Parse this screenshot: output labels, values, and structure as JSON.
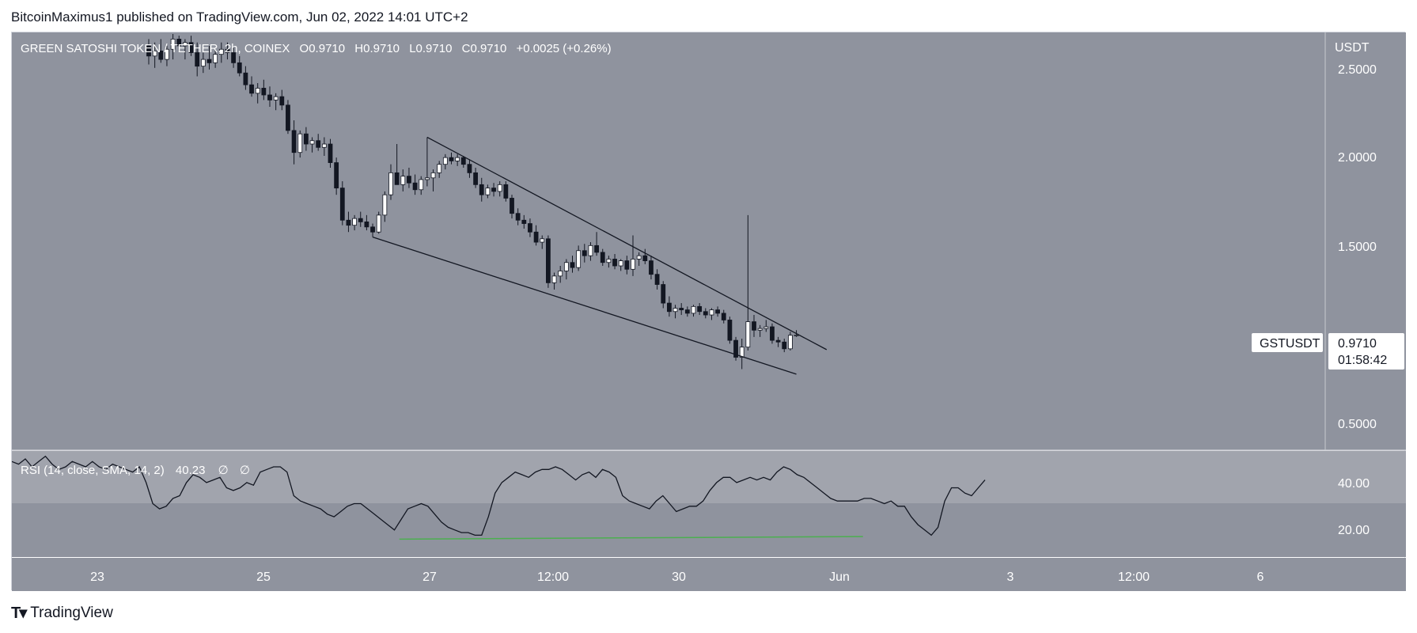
{
  "header": {
    "attribution": "BitcoinMaximus1 published on TradingView.com, Jun 02, 2022 14:01 UTC+2"
  },
  "legend": {
    "symbol": "GREEN SATOSHI TOKEN / TETHER, 2h, COINEX",
    "o_label": "O",
    "o_value": "0.9710",
    "h_label": "H",
    "h_value": "0.9710",
    "l_label": "L",
    "l_value": "0.9710",
    "c_label": "C",
    "c_value": "0.9710",
    "change": "+0.0025 (+0.26%)"
  },
  "price_axis": {
    "currency": "USDT",
    "ticks": [
      "2.5000",
      "2.0000",
      "1.5000",
      "0.5000"
    ],
    "symbol_badge": "GSTUSDT",
    "last_price": "0.9710",
    "countdown": "01:58:42"
  },
  "rsi": {
    "label": "RSI (14, close, SMA, 14, 2)",
    "value": "40.23",
    "extra1": "∅",
    "extra2": "∅",
    "ticks": [
      "40.00",
      "20.00"
    ]
  },
  "time_axis": {
    "ticks": [
      "23",
      "25",
      "27",
      "12:00",
      "30",
      "Jun",
      "3",
      "12:00",
      "6"
    ]
  },
  "footer": {
    "brand": "TradingView"
  },
  "colors": {
    "pane_bg": "#8f939e",
    "rsi_band": "#a1a4ad",
    "candle_up": "#ffffff",
    "candle_down": "#131722",
    "rsi_divergence": "#4caf50"
  },
  "chart_data": [
    {
      "type": "candlestick",
      "title": "GREEN SATOSHI TOKEN / TETHER, 2h, COINEX",
      "y_unit": "USDT",
      "ylim": [
        0.3,
        2.75
      ],
      "x_tick_labels": [
        "23",
        "25",
        "27",
        "12:00",
        "30",
        "Jun",
        "3",
        "12:00",
        "6"
      ],
      "candles": [
        {
          "o": 2.68,
          "h": 2.72,
          "l": 2.57,
          "c": 2.62
        },
        {
          "o": 2.62,
          "h": 2.7,
          "l": 2.55,
          "c": 2.65
        },
        {
          "o": 2.65,
          "h": 2.72,
          "l": 2.58,
          "c": 2.6
        },
        {
          "o": 2.6,
          "h": 2.68,
          "l": 2.56,
          "c": 2.66
        },
        {
          "o": 2.66,
          "h": 2.75,
          "l": 2.6,
          "c": 2.72
        },
        {
          "o": 2.72,
          "h": 2.74,
          "l": 2.65,
          "c": 2.68
        },
        {
          "o": 2.68,
          "h": 2.72,
          "l": 2.6,
          "c": 2.7
        },
        {
          "o": 2.7,
          "h": 2.74,
          "l": 2.62,
          "c": 2.64
        },
        {
          "o": 2.64,
          "h": 2.7,
          "l": 2.5,
          "c": 2.56
        },
        {
          "o": 2.56,
          "h": 2.64,
          "l": 2.52,
          "c": 2.6
        },
        {
          "o": 2.6,
          "h": 2.68,
          "l": 2.54,
          "c": 2.58
        },
        {
          "o": 2.58,
          "h": 2.66,
          "l": 2.55,
          "c": 2.63
        },
        {
          "o": 2.63,
          "h": 2.7,
          "l": 2.58,
          "c": 2.66
        },
        {
          "o": 2.66,
          "h": 2.7,
          "l": 2.6,
          "c": 2.64
        },
        {
          "o": 2.64,
          "h": 2.67,
          "l": 2.55,
          "c": 2.58
        },
        {
          "o": 2.58,
          "h": 2.62,
          "l": 2.5,
          "c": 2.52
        },
        {
          "o": 2.52,
          "h": 2.56,
          "l": 2.42,
          "c": 2.45
        },
        {
          "o": 2.45,
          "h": 2.5,
          "l": 2.38,
          "c": 2.4
        },
        {
          "o": 2.4,
          "h": 2.46,
          "l": 2.34,
          "c": 2.43
        },
        {
          "o": 2.43,
          "h": 2.48,
          "l": 2.36,
          "c": 2.39
        },
        {
          "o": 2.39,
          "h": 2.44,
          "l": 2.32,
          "c": 2.36
        },
        {
          "o": 2.36,
          "h": 2.4,
          "l": 2.3,
          "c": 2.38
        },
        {
          "o": 2.38,
          "h": 2.42,
          "l": 2.3,
          "c": 2.33
        },
        {
          "o": 2.33,
          "h": 2.36,
          "l": 2.16,
          "c": 2.18
        },
        {
          "o": 2.18,
          "h": 2.24,
          "l": 1.98,
          "c": 2.05
        },
        {
          "o": 2.05,
          "h": 2.18,
          "l": 2.02,
          "c": 2.16
        },
        {
          "o": 2.16,
          "h": 2.2,
          "l": 2.06,
          "c": 2.1
        },
        {
          "o": 2.1,
          "h": 2.14,
          "l": 2.05,
          "c": 2.12
        },
        {
          "o": 2.12,
          "h": 2.16,
          "l": 2.06,
          "c": 2.08
        },
        {
          "o": 2.08,
          "h": 2.14,
          "l": 2.03,
          "c": 2.1
        },
        {
          "o": 2.1,
          "h": 2.13,
          "l": 1.96,
          "c": 1.99
        },
        {
          "o": 1.99,
          "h": 2.02,
          "l": 1.8,
          "c": 1.84
        },
        {
          "o": 1.84,
          "h": 1.88,
          "l": 1.62,
          "c": 1.65
        },
        {
          "o": 1.65,
          "h": 1.7,
          "l": 1.58,
          "c": 1.62
        },
        {
          "o": 1.62,
          "h": 1.68,
          "l": 1.59,
          "c": 1.66
        },
        {
          "o": 1.66,
          "h": 1.7,
          "l": 1.61,
          "c": 1.64
        },
        {
          "o": 1.64,
          "h": 1.68,
          "l": 1.59,
          "c": 1.61
        },
        {
          "o": 1.61,
          "h": 1.63,
          "l": 1.55,
          "c": 1.58
        },
        {
          "o": 1.58,
          "h": 1.7,
          "l": 1.57,
          "c": 1.68
        },
        {
          "o": 1.68,
          "h": 1.82,
          "l": 1.64,
          "c": 1.8
        },
        {
          "o": 1.8,
          "h": 1.98,
          "l": 1.77,
          "c": 1.93
        },
        {
          "o": 1.93,
          "h": 2.1,
          "l": 1.88,
          "c": 1.86
        },
        {
          "o": 1.86,
          "h": 1.95,
          "l": 1.82,
          "c": 1.91
        },
        {
          "o": 1.91,
          "h": 1.96,
          "l": 1.84,
          "c": 1.87
        },
        {
          "o": 1.87,
          "h": 1.92,
          "l": 1.8,
          "c": 1.83
        },
        {
          "o": 1.83,
          "h": 1.91,
          "l": 1.8,
          "c": 1.89
        },
        {
          "o": 1.89,
          "h": 2.14,
          "l": 1.85,
          "c": 1.9
        },
        {
          "o": 1.9,
          "h": 1.95,
          "l": 1.82,
          "c": 1.93
        },
        {
          "o": 1.93,
          "h": 2.0,
          "l": 1.9,
          "c": 1.98
        },
        {
          "o": 1.98,
          "h": 2.04,
          "l": 1.95,
          "c": 2.02
        },
        {
          "o": 2.02,
          "h": 2.05,
          "l": 1.98,
          "c": 2.0
        },
        {
          "o": 2.0,
          "h": 2.04,
          "l": 1.97,
          "c": 2.02
        },
        {
          "o": 2.02,
          "h": 2.03,
          "l": 1.96,
          "c": 1.98
        },
        {
          "o": 1.98,
          "h": 2.01,
          "l": 1.9,
          "c": 1.93
        },
        {
          "o": 1.93,
          "h": 1.96,
          "l": 1.84,
          "c": 1.86
        },
        {
          "o": 1.86,
          "h": 1.9,
          "l": 1.76,
          "c": 1.8
        },
        {
          "o": 1.8,
          "h": 1.86,
          "l": 1.78,
          "c": 1.84
        },
        {
          "o": 1.84,
          "h": 1.87,
          "l": 1.79,
          "c": 1.82
        },
        {
          "o": 1.82,
          "h": 1.88,
          "l": 1.79,
          "c": 1.86
        },
        {
          "o": 1.86,
          "h": 1.88,
          "l": 1.76,
          "c": 1.78
        },
        {
          "o": 1.78,
          "h": 1.8,
          "l": 1.66,
          "c": 1.69
        },
        {
          "o": 1.69,
          "h": 1.72,
          "l": 1.62,
          "c": 1.65
        },
        {
          "o": 1.65,
          "h": 1.68,
          "l": 1.6,
          "c": 1.63
        },
        {
          "o": 1.63,
          "h": 1.66,
          "l": 1.55,
          "c": 1.58
        },
        {
          "o": 1.58,
          "h": 1.62,
          "l": 1.5,
          "c": 1.52
        },
        {
          "o": 1.52,
          "h": 1.56,
          "l": 1.48,
          "c": 1.54
        },
        {
          "o": 1.54,
          "h": 1.56,
          "l": 1.25,
          "c": 1.28
        },
        {
          "o": 1.28,
          "h": 1.34,
          "l": 1.24,
          "c": 1.32
        },
        {
          "o": 1.32,
          "h": 1.38,
          "l": 1.28,
          "c": 1.35
        },
        {
          "o": 1.35,
          "h": 1.42,
          "l": 1.3,
          "c": 1.4
        },
        {
          "o": 1.4,
          "h": 1.44,
          "l": 1.34,
          "c": 1.37
        },
        {
          "o": 1.37,
          "h": 1.5,
          "l": 1.35,
          "c": 1.47
        },
        {
          "o": 1.47,
          "h": 1.51,
          "l": 1.4,
          "c": 1.44
        },
        {
          "o": 1.44,
          "h": 1.52,
          "l": 1.41,
          "c": 1.5
        },
        {
          "o": 1.5,
          "h": 1.58,
          "l": 1.44,
          "c": 1.46
        },
        {
          "o": 1.46,
          "h": 1.48,
          "l": 1.38,
          "c": 1.4
        },
        {
          "o": 1.4,
          "h": 1.44,
          "l": 1.37,
          "c": 1.42
        },
        {
          "o": 1.42,
          "h": 1.45,
          "l": 1.36,
          "c": 1.38
        },
        {
          "o": 1.38,
          "h": 1.42,
          "l": 1.35,
          "c": 1.41
        },
        {
          "o": 1.41,
          "h": 1.44,
          "l": 1.33,
          "c": 1.36
        },
        {
          "o": 1.36,
          "h": 1.56,
          "l": 1.32,
          "c": 1.42
        },
        {
          "o": 1.42,
          "h": 1.46,
          "l": 1.38,
          "c": 1.44
        },
        {
          "o": 1.44,
          "h": 1.48,
          "l": 1.39,
          "c": 1.41
        },
        {
          "o": 1.41,
          "h": 1.44,
          "l": 1.3,
          "c": 1.33
        },
        {
          "o": 1.33,
          "h": 1.36,
          "l": 1.24,
          "c": 1.27
        },
        {
          "o": 1.27,
          "h": 1.29,
          "l": 1.13,
          "c": 1.16
        },
        {
          "o": 1.16,
          "h": 1.2,
          "l": 1.08,
          "c": 1.11
        },
        {
          "o": 1.11,
          "h": 1.15,
          "l": 1.07,
          "c": 1.13
        },
        {
          "o": 1.13,
          "h": 1.16,
          "l": 1.09,
          "c": 1.12
        },
        {
          "o": 1.12,
          "h": 1.14,
          "l": 1.08,
          "c": 1.1
        },
        {
          "o": 1.1,
          "h": 1.15,
          "l": 1.08,
          "c": 1.14
        },
        {
          "o": 1.14,
          "h": 1.16,
          "l": 1.09,
          "c": 1.11
        },
        {
          "o": 1.11,
          "h": 1.13,
          "l": 1.07,
          "c": 1.09
        },
        {
          "o": 1.09,
          "h": 1.13,
          "l": 1.06,
          "c": 1.12
        },
        {
          "o": 1.12,
          "h": 1.14,
          "l": 1.08,
          "c": 1.1
        },
        {
          "o": 1.1,
          "h": 1.12,
          "l": 1.04,
          "c": 1.06
        },
        {
          "o": 1.06,
          "h": 1.08,
          "l": 0.92,
          "c": 0.94
        },
        {
          "o": 0.94,
          "h": 0.96,
          "l": 0.82,
          "c": 0.84
        },
        {
          "o": 0.84,
          "h": 0.95,
          "l": 0.77,
          "c": 0.9
        },
        {
          "o": 0.9,
          "h": 1.68,
          "l": 0.88,
          "c": 1.05
        },
        {
          "o": 1.05,
          "h": 1.09,
          "l": 0.96,
          "c": 1.0
        },
        {
          "o": 1.0,
          "h": 1.03,
          "l": 0.96,
          "c": 1.01
        },
        {
          "o": 1.01,
          "h": 1.06,
          "l": 0.99,
          "c": 1.02
        },
        {
          "o": 1.02,
          "h": 1.04,
          "l": 0.92,
          "c": 0.94
        },
        {
          "o": 0.94,
          "h": 0.96,
          "l": 0.9,
          "c": 0.93
        },
        {
          "o": 0.93,
          "h": 0.95,
          "l": 0.87,
          "c": 0.89
        },
        {
          "o": 0.89,
          "h": 0.99,
          "l": 0.88,
          "c": 0.97
        },
        {
          "o": 0.97,
          "h": 1.0,
          "l": 0.96,
          "c": 0.971
        }
      ],
      "lines": [
        {
          "name": "upper-trendline",
          "points": [
            {
              "i": 46,
              "y": 2.14
            },
            {
              "i": 112,
              "y": 0.885
            }
          ]
        },
        {
          "name": "lower-trendline",
          "points": [
            {
              "i": 37,
              "y": 1.55
            },
            {
              "i": 107,
              "y": 0.74
            }
          ]
        }
      ],
      "ylabel": "",
      "xlabel": ""
    },
    {
      "type": "line",
      "title": "RSI (14, close, SMA, 14, 2)",
      "ylim": [
        12,
        52
      ],
      "band": [
        30,
        42
      ],
      "series": [
        {
          "values": [
            48,
            47,
            49,
            46,
            48,
            50,
            47,
            45,
            46,
            48,
            47,
            46,
            48,
            46,
            45,
            47,
            46,
            45,
            44,
            46,
            40,
            32,
            30,
            31,
            34,
            35,
            40,
            43,
            42,
            40,
            41,
            42,
            38,
            37,
            38,
            40,
            39,
            44,
            45,
            46,
            46,
            44,
            35,
            33,
            32,
            31,
            30,
            28,
            27,
            29,
            31,
            32,
            32,
            30,
            28,
            26,
            24,
            22,
            26,
            30,
            31,
            32,
            31,
            28,
            25,
            23,
            22,
            21,
            21,
            20,
            20,
            27,
            36,
            40,
            42,
            44,
            43,
            42,
            44,
            45,
            45,
            46,
            45,
            43,
            41,
            43,
            44,
            42,
            45,
            44,
            42,
            35,
            33,
            32,
            31,
            30,
            33,
            35,
            32,
            29,
            30,
            31,
            31,
            33,
            37,
            40,
            42,
            42,
            40,
            41,
            42,
            41,
            42,
            41,
            44,
            46,
            45,
            43,
            42,
            40,
            38,
            36,
            34,
            33,
            33,
            33,
            33,
            34,
            34,
            33,
            32,
            33,
            31,
            31,
            27,
            24,
            22,
            20,
            23,
            33,
            38,
            38,
            36,
            35,
            38,
            41
          ]
        }
      ],
      "lines": [
        {
          "name": "rsi-divergence",
          "points": [
            {
              "x": 0.295,
              "y": 18.5
            },
            {
              "x": 0.648,
              "y": 19.5
            }
          ]
        }
      ],
      "ylabel": "",
      "xlabel": ""
    }
  ]
}
